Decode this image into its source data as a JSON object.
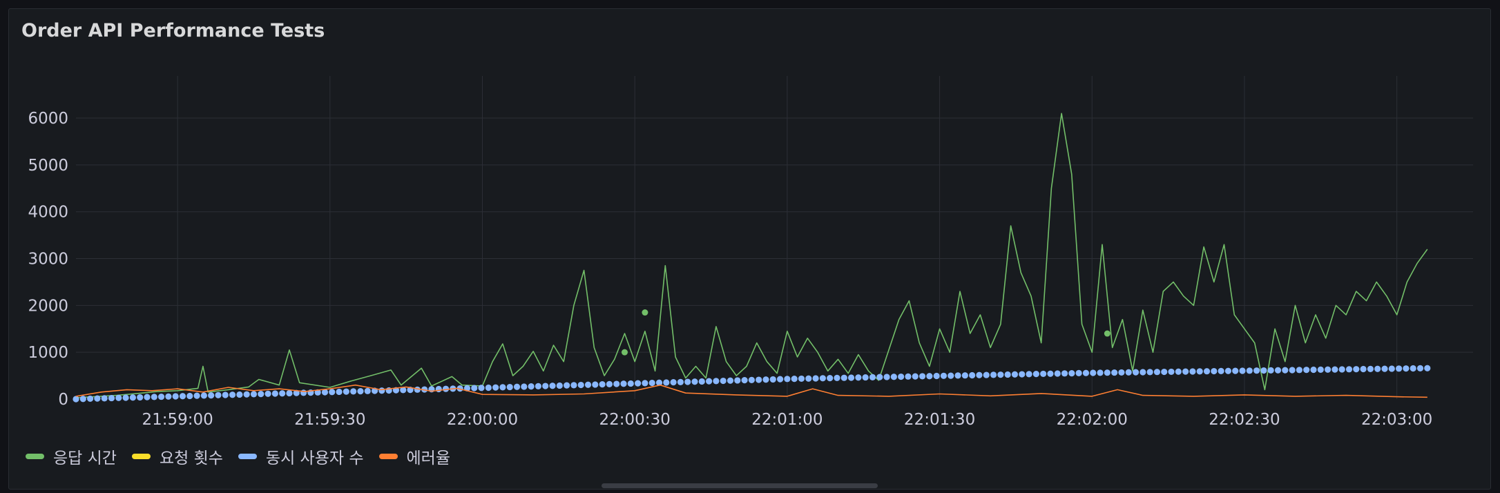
{
  "panel": {
    "title": "Order API Performance Tests"
  },
  "colors": {
    "bg": "#181b1f",
    "grid": "#2c2f36",
    "text": "#ccccdc"
  },
  "chart_data": {
    "type": "line",
    "title": "Order API Performance Tests",
    "xlabel": "",
    "ylabel": "",
    "x_range": [
      "21:58:40",
      "22:03:15"
    ],
    "xticks": [
      "21:59:00",
      "21:59:30",
      "22:00:00",
      "22:00:30",
      "22:01:00",
      "22:01:30",
      "22:02:00",
      "22:02:30",
      "22:03:00"
    ],
    "yticks": [
      0,
      1000,
      2000,
      3000,
      4000,
      5000,
      6000
    ],
    "ylim": [
      0,
      6900
    ],
    "grid": true,
    "legend": "bottom-left",
    "series": [
      {
        "name": "응답 시간",
        "color": "#73bf69",
        "style": "line",
        "points": [
          [
            "21:58:40",
            30
          ],
          [
            "21:58:48",
            80
          ],
          [
            "21:58:52",
            120
          ],
          [
            "21:58:56",
            160
          ],
          [
            "21:59:00",
            180
          ],
          [
            "21:59:04",
            230
          ],
          [
            "21:59:05",
            700
          ],
          [
            "21:59:06",
            150
          ],
          [
            "21:59:10",
            200
          ],
          [
            "21:59:14",
            260
          ],
          [
            "21:59:16",
            420
          ],
          [
            "21:59:20",
            300
          ],
          [
            "21:59:22",
            1050
          ],
          [
            "21:59:24",
            350
          ],
          [
            "21:59:30",
            250
          ],
          [
            "21:59:34",
            380
          ],
          [
            "21:59:38",
            500
          ],
          [
            "21:59:42",
            620
          ],
          [
            "21:59:44",
            300
          ],
          [
            "21:59:48",
            660
          ],
          [
            "21:59:50",
            280
          ],
          [
            "21:59:54",
            480
          ],
          [
            "21:59:56",
            300
          ],
          [
            "22:00:00",
            280
          ],
          [
            "22:00:02",
            800
          ],
          [
            "22:00:04",
            1180
          ],
          [
            "22:00:06",
            500
          ],
          [
            "22:00:08",
            700
          ],
          [
            "22:00:10",
            1020
          ],
          [
            "22:00:12",
            600
          ],
          [
            "22:00:14",
            1150
          ],
          [
            "22:00:16",
            800
          ],
          [
            "22:00:18",
            2000
          ],
          [
            "22:00:20",
            2750
          ],
          [
            "22:00:22",
            1100
          ],
          [
            "22:00:24",
            500
          ],
          [
            "22:00:26",
            850
          ],
          [
            "22:00:28",
            1400
          ],
          [
            "22:00:30",
            800
          ],
          [
            "22:00:32",
            1450
          ],
          [
            "22:00:34",
            600
          ],
          [
            "22:00:36",
            2850
          ],
          [
            "22:00:38",
            900
          ],
          [
            "22:00:40",
            450
          ],
          [
            "22:00:42",
            700
          ],
          [
            "22:00:44",
            450
          ],
          [
            "22:00:46",
            1550
          ],
          [
            "22:00:48",
            800
          ],
          [
            "22:00:50",
            500
          ],
          [
            "22:00:52",
            700
          ],
          [
            "22:00:54",
            1200
          ],
          [
            "22:00:56",
            800
          ],
          [
            "22:00:58",
            550
          ],
          [
            "22:01:00",
            1450
          ],
          [
            "22:01:02",
            900
          ],
          [
            "22:01:04",
            1300
          ],
          [
            "22:01:06",
            1000
          ],
          [
            "22:01:08",
            600
          ],
          [
            "22:01:10",
            850
          ],
          [
            "22:01:12",
            550
          ],
          [
            "22:01:14",
            950
          ],
          [
            "22:01:16",
            600
          ],
          [
            "22:01:18",
            400
          ],
          [
            "22:01:22",
            1700
          ],
          [
            "22:01:24",
            2100
          ],
          [
            "22:01:26",
            1200
          ],
          [
            "22:01:28",
            700
          ],
          [
            "22:01:30",
            1500
          ],
          [
            "22:01:32",
            1000
          ],
          [
            "22:01:34",
            2300
          ],
          [
            "22:01:36",
            1400
          ],
          [
            "22:01:38",
            1800
          ],
          [
            "22:01:40",
            1100
          ],
          [
            "22:01:42",
            1600
          ],
          [
            "22:01:44",
            3700
          ],
          [
            "22:01:46",
            2700
          ],
          [
            "22:01:48",
            2200
          ],
          [
            "22:01:50",
            1200
          ],
          [
            "22:01:52",
            4500
          ],
          [
            "22:01:54",
            6100
          ],
          [
            "22:01:56",
            4800
          ],
          [
            "22:01:58",
            1600
          ],
          [
            "22:02:00",
            1000
          ],
          [
            "22:02:02",
            3300
          ],
          [
            "22:02:04",
            1100
          ],
          [
            "22:02:06",
            1700
          ],
          [
            "22:02:08",
            600
          ],
          [
            "22:02:10",
            1900
          ],
          [
            "22:02:12",
            1000
          ],
          [
            "22:02:14",
            2300
          ],
          [
            "22:02:16",
            2500
          ],
          [
            "22:02:18",
            2200
          ],
          [
            "22:02:20",
            2000
          ],
          [
            "22:02:22",
            3250
          ],
          [
            "22:02:24",
            2500
          ],
          [
            "22:02:26",
            3300
          ],
          [
            "22:02:28",
            1800
          ],
          [
            "22:02:30",
            1500
          ],
          [
            "22:02:32",
            1200
          ],
          [
            "22:02:34",
            200
          ],
          [
            "22:02:36",
            1500
          ],
          [
            "22:02:38",
            800
          ],
          [
            "22:02:40",
            2000
          ],
          [
            "22:02:42",
            1200
          ],
          [
            "22:02:44",
            1800
          ],
          [
            "22:02:46",
            1300
          ],
          [
            "22:02:48",
            2000
          ],
          [
            "22:02:50",
            1800
          ],
          [
            "22:02:52",
            2300
          ],
          [
            "22:02:54",
            2100
          ],
          [
            "22:02:56",
            2500
          ],
          [
            "22:02:58",
            2200
          ],
          [
            "22:03:00",
            1800
          ],
          [
            "22:03:02",
            2500
          ],
          [
            "22:03:04",
            2900
          ],
          [
            "22:03:06",
            3200
          ]
        ],
        "markers": [
          [
            "22:00:28",
            1000
          ],
          [
            "22:00:32",
            1850
          ],
          [
            "22:02:03",
            1400
          ]
        ]
      },
      {
        "name": "요청 횟수",
        "color": "#fade2a",
        "style": "line",
        "points": []
      },
      {
        "name": "동시 사용자 수",
        "color": "#8ab8ff",
        "style": "dots",
        "points": [
          [
            "21:58:40",
            0
          ],
          [
            "22:00:00",
            240
          ],
          [
            "22:01:00",
            430
          ],
          [
            "22:02:00",
            560
          ],
          [
            "22:03:06",
            660
          ]
        ]
      },
      {
        "name": "에러율",
        "color": "#ff7f32",
        "style": "line",
        "points": [
          [
            "21:58:40",
            60
          ],
          [
            "21:58:45",
            150
          ],
          [
            "21:58:50",
            200
          ],
          [
            "21:58:55",
            180
          ],
          [
            "21:59:00",
            220
          ],
          [
            "21:59:05",
            150
          ],
          [
            "21:59:10",
            250
          ],
          [
            "21:59:15",
            180
          ],
          [
            "21:59:20",
            220
          ],
          [
            "21:59:25",
            160
          ],
          [
            "21:59:30",
            220
          ],
          [
            "21:59:35",
            300
          ],
          [
            "21:59:40",
            200
          ],
          [
            "21:59:45",
            260
          ],
          [
            "21:59:50",
            170
          ],
          [
            "21:59:55",
            230
          ],
          [
            "22:00:00",
            100
          ],
          [
            "22:00:10",
            90
          ],
          [
            "22:00:20",
            110
          ],
          [
            "22:00:30",
            180
          ],
          [
            "22:00:35",
            300
          ],
          [
            "22:00:40",
            130
          ],
          [
            "22:00:50",
            90
          ],
          [
            "22:01:00",
            60
          ],
          [
            "22:01:05",
            220
          ],
          [
            "22:01:10",
            80
          ],
          [
            "22:01:20",
            60
          ],
          [
            "22:01:30",
            110
          ],
          [
            "22:01:40",
            70
          ],
          [
            "22:01:50",
            120
          ],
          [
            "22:02:00",
            60
          ],
          [
            "22:02:05",
            200
          ],
          [
            "22:02:10",
            80
          ],
          [
            "22:02:20",
            60
          ],
          [
            "22:02:30",
            90
          ],
          [
            "22:02:40",
            60
          ],
          [
            "22:02:50",
            80
          ],
          [
            "22:03:00",
            50
          ],
          [
            "22:03:06",
            40
          ]
        ]
      }
    ]
  }
}
